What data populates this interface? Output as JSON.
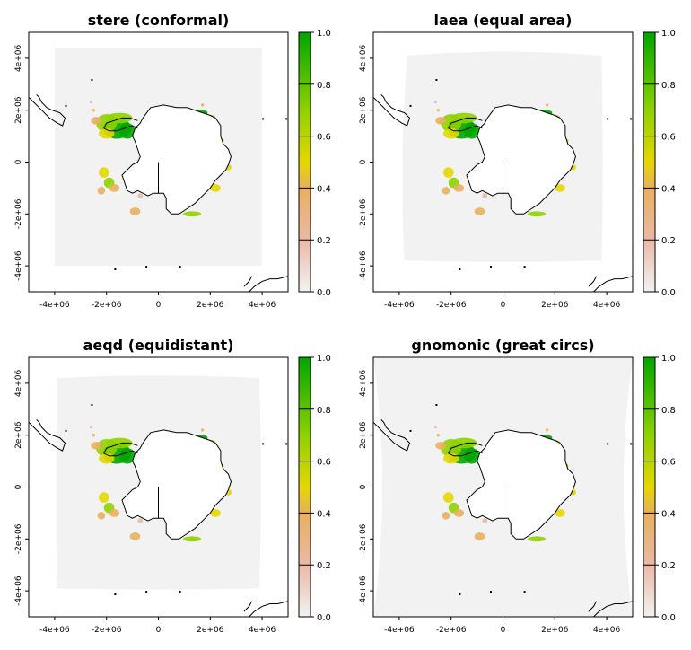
{
  "chart_data": [
    {
      "type": "heatmap",
      "title": "stere (conformal)",
      "projection": "stere",
      "xlim": [
        -5000000,
        5000000
      ],
      "ylim": [
        -5000000,
        5000000
      ],
      "x_ticks": [
        -4000000,
        -2000000,
        0,
        2000000,
        4000000
      ],
      "x_tick_labels": [
        "-4e+06",
        "-2e+06",
        "0",
        "2e+06",
        "4e+06"
      ],
      "y_ticks": [
        -4000000,
        -2000000,
        0,
        2000000,
        4000000
      ],
      "y_tick_labels": [
        "-4e+06",
        "-2e+06",
        "0",
        "2e+06",
        "4e+06"
      ],
      "colorbar": {
        "range": [
          0,
          1
        ],
        "ticks": [
          0.0,
          0.2,
          0.4,
          0.6,
          0.8,
          1.0
        ],
        "tick_labels": [
          "0.0",
          "0.2",
          "0.4",
          "0.6",
          "0.8",
          "1.0"
        ]
      }
    },
    {
      "type": "heatmap",
      "title": "laea (equal area)",
      "projection": "laea",
      "xlim": [
        -5000000,
        5000000
      ],
      "ylim": [
        -5000000,
        5000000
      ],
      "x_ticks": [
        -4000000,
        -2000000,
        0,
        2000000,
        4000000
      ],
      "x_tick_labels": [
        "-4e+06",
        "-2e+06",
        "0",
        "2e+06",
        "4e+06"
      ],
      "y_ticks": [
        -4000000,
        -2000000,
        0,
        2000000,
        4000000
      ],
      "y_tick_labels": [
        "-4e+06",
        "-2e+06",
        "0",
        "2e+06",
        "4e+06"
      ],
      "colorbar": {
        "range": [
          0,
          1
        ],
        "ticks": [
          0.0,
          0.2,
          0.4,
          0.6,
          0.8,
          1.0
        ],
        "tick_labels": [
          "0.0",
          "0.2",
          "0.4",
          "0.6",
          "0.8",
          "1.0"
        ]
      }
    },
    {
      "type": "heatmap",
      "title": "aeqd (equidistant)",
      "projection": "aeqd",
      "xlim": [
        -5000000,
        5000000
      ],
      "ylim": [
        -5000000,
        5000000
      ],
      "x_ticks": [
        -4000000,
        -2000000,
        0,
        2000000,
        4000000
      ],
      "x_tick_labels": [
        "-4e+06",
        "-2e+06",
        "0",
        "2e+06",
        "4e+06"
      ],
      "y_ticks": [
        -4000000,
        -2000000,
        0,
        2000000,
        4000000
      ],
      "y_tick_labels": [
        "-4e+06",
        "-2e+06",
        "0",
        "2e+06",
        "4e+06"
      ],
      "colorbar": {
        "range": [
          0,
          1
        ],
        "ticks": [
          0.0,
          0.2,
          0.4,
          0.6,
          0.8,
          1.0
        ],
        "tick_labels": [
          "0.0",
          "0.2",
          "0.4",
          "0.6",
          "0.8",
          "1.0"
        ]
      }
    },
    {
      "type": "heatmap",
      "title": "gnomonic (great circs)",
      "projection": "gnom",
      "xlim": [
        -5000000,
        5000000
      ],
      "ylim": [
        -5000000,
        5000000
      ],
      "x_ticks": [
        -4000000,
        -2000000,
        0,
        2000000,
        4000000
      ],
      "x_tick_labels": [
        "-4e+06",
        "-2e+06",
        "0",
        "2e+06",
        "4e+06"
      ],
      "y_ticks": [
        -4000000,
        -2000000,
        0,
        2000000,
        4000000
      ],
      "y_tick_labels": [
        "-4e+06",
        "-2e+06",
        "0",
        "2e+06",
        "4e+06"
      ],
      "colorbar": {
        "range": [
          0,
          1
        ],
        "ticks": [
          0.0,
          0.2,
          0.4,
          0.6,
          0.8,
          1.0
        ],
        "tick_labels": [
          "0.0",
          "0.2",
          "0.4",
          "0.6",
          "0.8",
          "1.0"
        ]
      }
    }
  ],
  "colors": {
    "background_raster": "#f2f2f2",
    "continent_fill": "#ffffff",
    "coastline": "#000000",
    "colorbar_stops": [
      "#f2f2f2",
      "#eab9a6",
      "#e8b05e",
      "#e5d700",
      "#8fd100",
      "#00a600"
    ]
  }
}
